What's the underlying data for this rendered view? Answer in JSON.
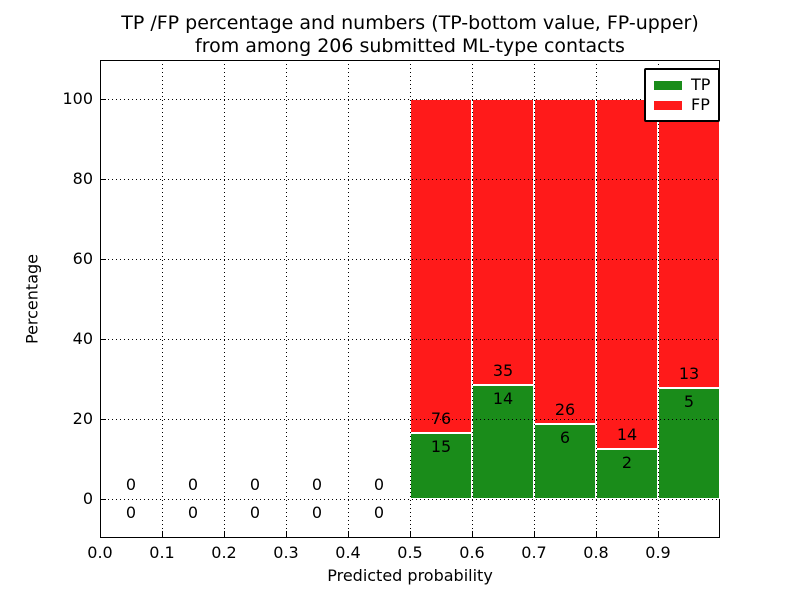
{
  "title": {
    "line1": "TP /FP percentage and numbers (TP-bottom value, FP-upper)",
    "line2": "from among 206 submitted ML-type contacts"
  },
  "chart_data": {
    "type": "bar",
    "stacked": true,
    "normalized": "each non-empty bin scaled to 100%",
    "title": "TP /FP percentage and numbers (TP-bottom value, FP-upper) from among 206 submitted ML-type contacts",
    "xlabel": "Predicted probability",
    "ylabel": "Percentage",
    "total_contacts": 206,
    "xlim": [
      0.0,
      1.0
    ],
    "ylim": [
      -13,
      110
    ],
    "grid": "dotted",
    "xticks": [
      "0.0",
      "0.1",
      "0.2",
      "0.3",
      "0.4",
      "0.5",
      "0.6",
      "0.7",
      "0.8",
      "0.9"
    ],
    "yticks": [
      "0",
      "20",
      "40",
      "60",
      "80",
      "100"
    ],
    "ytick_values": [
      0,
      20,
      40,
      60,
      80,
      100
    ],
    "legend": {
      "position": "upper right",
      "entries": [
        {
          "label": "TP",
          "color": "#1a8c1a"
        },
        {
          "label": "FP",
          "color": "#ff1a1a"
        }
      ]
    },
    "bins": [
      {
        "range": [
          0.0,
          0.1
        ],
        "tp": 0,
        "fp": 0
      },
      {
        "range": [
          0.1,
          0.2
        ],
        "tp": 0,
        "fp": 0
      },
      {
        "range": [
          0.2,
          0.3
        ],
        "tp": 0,
        "fp": 0
      },
      {
        "range": [
          0.3,
          0.4
        ],
        "tp": 0,
        "fp": 0
      },
      {
        "range": [
          0.4,
          0.5
        ],
        "tp": 0,
        "fp": 0
      },
      {
        "range": [
          0.5,
          0.6
        ],
        "tp": 15,
        "fp": 76
      },
      {
        "range": [
          0.6,
          0.7
        ],
        "tp": 14,
        "fp": 35
      },
      {
        "range": [
          0.7,
          0.8
        ],
        "tp": 6,
        "fp": 26
      },
      {
        "range": [
          0.8,
          0.9
        ],
        "tp": 2,
        "fp": 14
      },
      {
        "range": [
          0.9,
          1.0
        ],
        "tp": 5,
        "fp": 13
      }
    ]
  },
  "colors": {
    "tp_bar": "#1a8c1a",
    "fp_bar": "#ff1a1a",
    "grid": "#000000",
    "background": "#ffffff",
    "text": "#000000"
  }
}
